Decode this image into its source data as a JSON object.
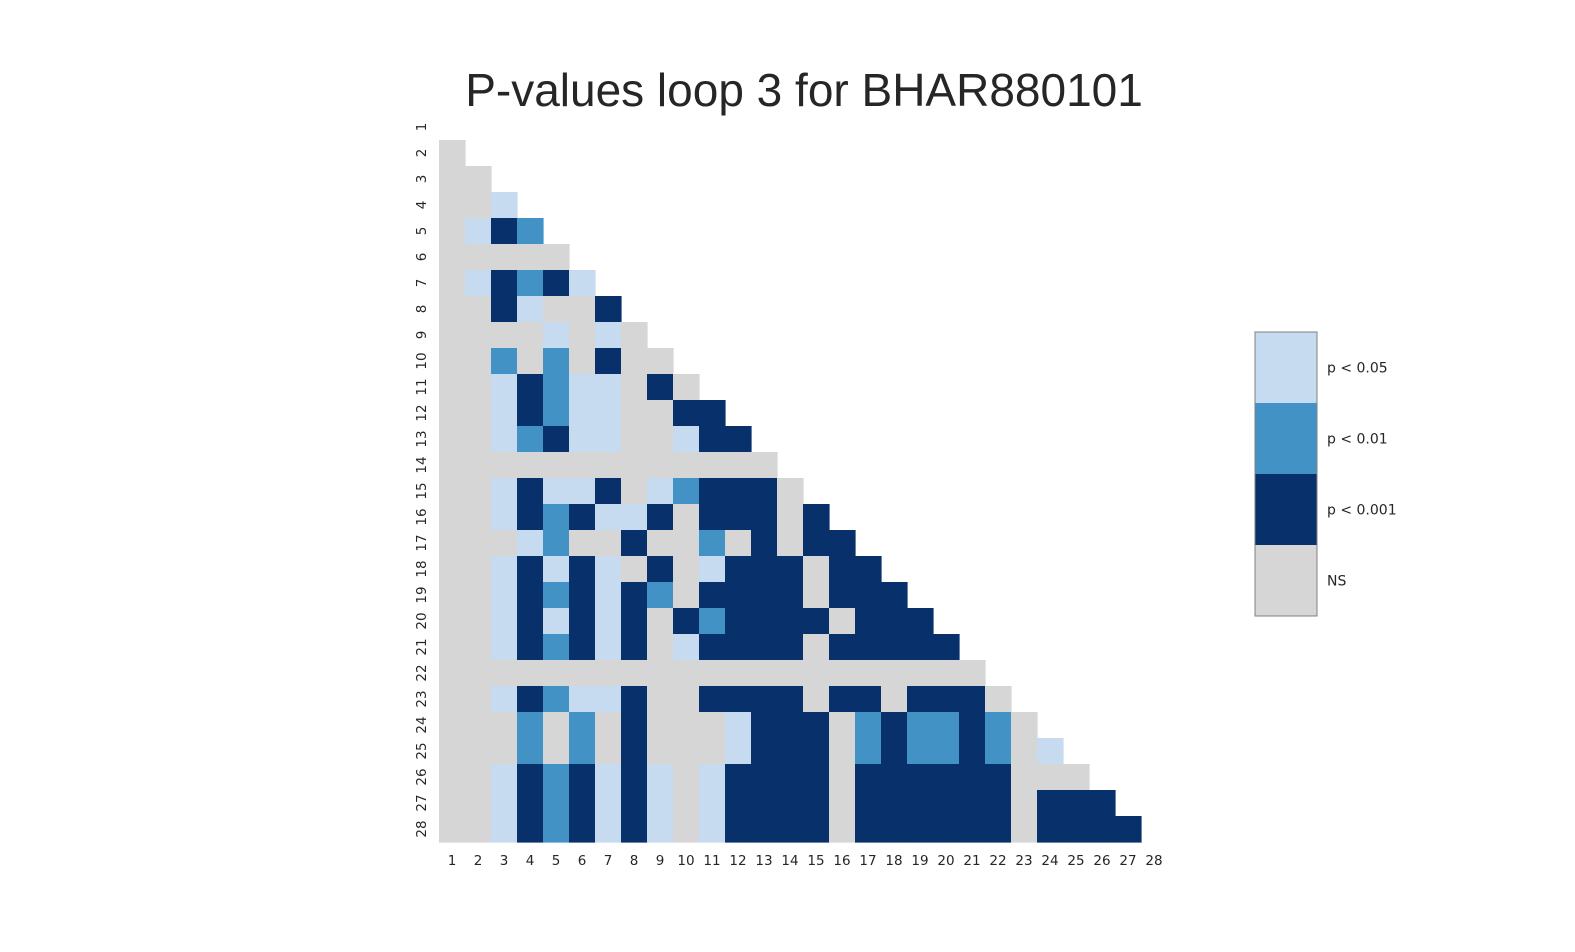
{
  "chart_data": {
    "type": "heatmap",
    "title": "P-values loop 3 for BHAR880101",
    "xlabel": "",
    "ylabel": "",
    "labels": [
      "1",
      "2",
      "3",
      "4",
      "5",
      "6",
      "7",
      "8",
      "9",
      "10",
      "11",
      "12",
      "13",
      "14",
      "15",
      "16",
      "17",
      "18",
      "19",
      "20",
      "21",
      "22",
      "23",
      "24",
      "25",
      "26",
      "27",
      "28"
    ],
    "lower_triangle_only": true,
    "grid": false,
    "categories": [
      {
        "code": "1",
        "label": "p < 0.05",
        "color": "#c6dbef"
      },
      {
        "code": "2",
        "label": "p < 0.01",
        "color": "#4292c6"
      },
      {
        "code": "3",
        "label": "p < 0.001",
        "color": "#08306b"
      },
      {
        "code": "0",
        "label": "NS",
        "color": "#d6d6d6"
      }
    ],
    "legend_order": [
      "1",
      "2",
      "3",
      "0"
    ],
    "legend_position": "right",
    "matrix_rows": [
      "",
      "0",
      "00",
      "001",
      "0132",
      "00000",
      "013231",
      "0031003",
      "00001010",
      "002020300",
      "0013211030",
      "00132110033",
      "001231100133",
      "0000000000000",
      "00131130123330",
      "001323113033303",
      "0001200300203033",
      "00131310301333033",
      "001323132033330333",
      "0013131303233330333",
      "00132313013333033333",
      "000000000000000000000",
      "0013211300333303303330",
      "00020203000133302322320",
      "000202030001333023223201",
      "0013231310133330333333000",
      "00132313101333303333330333",
      "001323131013333033333303333"
    ]
  }
}
